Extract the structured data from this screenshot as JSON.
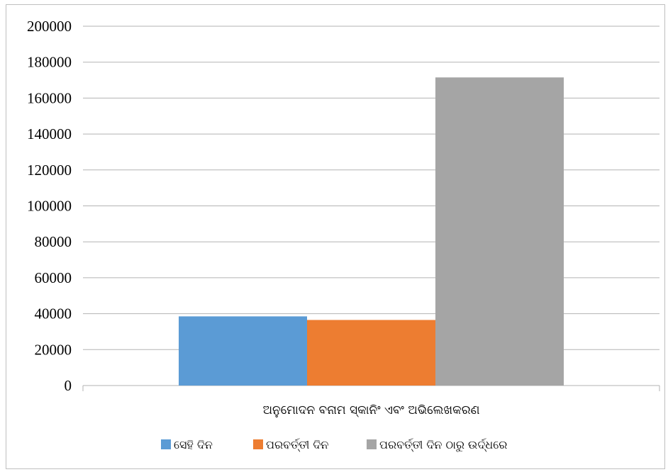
{
  "chart_data": {
    "type": "bar",
    "categories": [
      "ଅନୁମୋଦନ ବନାମ ସ୍କାନିଂ ଏବଂ ଅଭିଲେଖକରଣ"
    ],
    "series": [
      {
        "name": "ସେହି ଦିନ",
        "values": [
          38500
        ],
        "color": "#5b9bd5"
      },
      {
        "name": "ପରବର୍ତ୍ତୀ ଦିନ",
        "values": [
          36500
        ],
        "color": "#ed7d31"
      },
      {
        "name": "ପରବର୍ତ୍ତୀ ଦିନ ଠାରୁ ଉର୍ଦ୍ଧରେ",
        "values": [
          171500
        ],
        "color": "#a5a5a5"
      }
    ],
    "ylim": [
      0,
      200000
    ],
    "yticks": [
      "0",
      "20000",
      "40000",
      "60000",
      "80000",
      "100000",
      "120000",
      "140000",
      "160000",
      "180000",
      "200000"
    ],
    "grid": true,
    "legend": "bottom",
    "title": "",
    "xlabel": "",
    "ylabel": ""
  }
}
